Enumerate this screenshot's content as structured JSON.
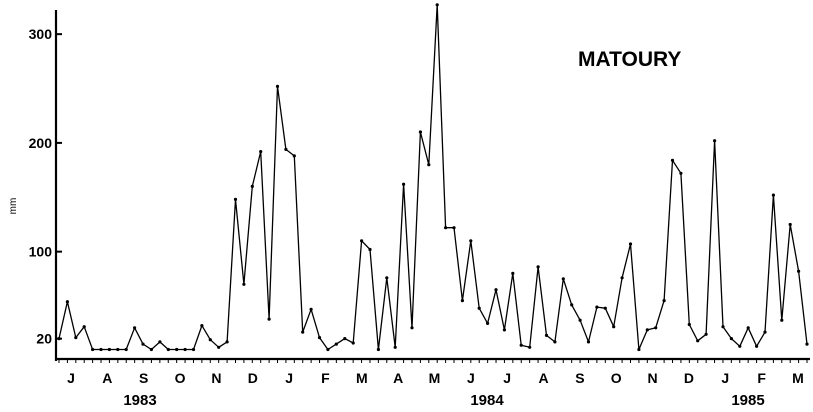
{
  "chart_data": {
    "type": "line",
    "title": "MATOURY",
    "ylabel": "mm",
    "xlabel": "",
    "ylim": [
      8,
      336
    ],
    "y_ticks": [
      20,
      100,
      200,
      300
    ],
    "peak_label": "336",
    "month_labels": [
      "J",
      "A",
      "S",
      "O",
      "N",
      "D",
      "J",
      "F",
      "M",
      "A",
      "M",
      "J",
      "J",
      "A",
      "S",
      "O",
      "N",
      "D",
      "J",
      "F",
      "M"
    ],
    "year_labels": [
      "1983",
      "1984",
      "1985"
    ],
    "series": [
      {
        "values": [
          20,
          54,
          21,
          31,
          10,
          10,
          10,
          10,
          10,
          30,
          15,
          10,
          17,
          10,
          10,
          10,
          10,
          32,
          19,
          12,
          17,
          148,
          70,
          160,
          192,
          38,
          252,
          194,
          188,
          26,
          47,
          21,
          10,
          15,
          20,
          16,
          110,
          102,
          10,
          76,
          12,
          162,
          30,
          210,
          180,
          327,
          122,
          122,
          55,
          110,
          48,
          34,
          65,
          28,
          80,
          14,
          12,
          86,
          23,
          17,
          75,
          51,
          37,
          17,
          49,
          48,
          31,
          76,
          107,
          10,
          28,
          30,
          55,
          184,
          172,
          33,
          18,
          24,
          202,
          31,
          20,
          13,
          30,
          13,
          26,
          152,
          37,
          125,
          82,
          15
        ]
      }
    ]
  }
}
